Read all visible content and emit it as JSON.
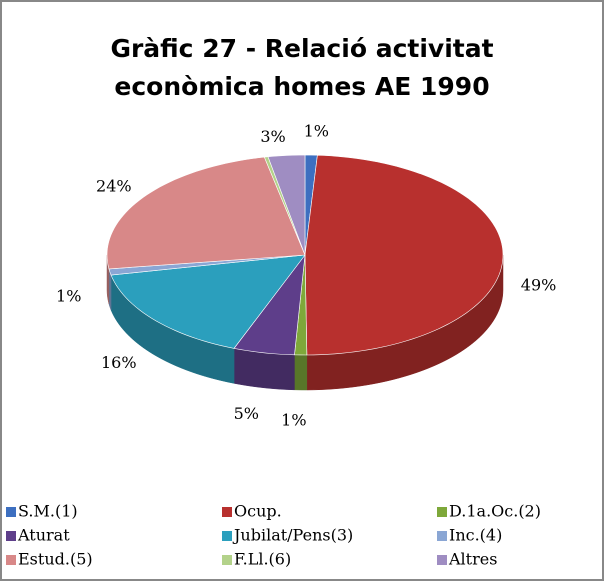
{
  "chart_data": {
    "type": "pie3d",
    "title": "Gràfic 27 - Relació activitat econòmica homes AE 1990",
    "title_lines": [
      "Gràfic 27 - Relació activitat",
      "econòmica homes AE 1990"
    ],
    "categories": [
      "S.M.(1)",
      "Ocup.",
      "D.1a.Oc.(2)",
      "Aturat",
      "Jubilat/Pens(3)",
      "Inc.(4)",
      "Estud.(5)",
      "F.Ll.(6)",
      "Altres"
    ],
    "values": [
      1,
      49,
      1,
      5,
      16,
      1,
      24,
      0.3,
      3
    ],
    "value_labels": [
      "1%",
      "49%",
      "1%",
      "5%",
      "16%",
      "1%",
      "24%",
      null,
      "3%"
    ],
    "colors": [
      "#3d6fc0",
      "#b8302e",
      "#7ea83a",
      "#5e3e8a",
      "#2b9fbd",
      "#8aa6d4",
      "#d88888",
      "#b3d28a",
      "#9f8dc2"
    ],
    "legend": "bottom"
  }
}
